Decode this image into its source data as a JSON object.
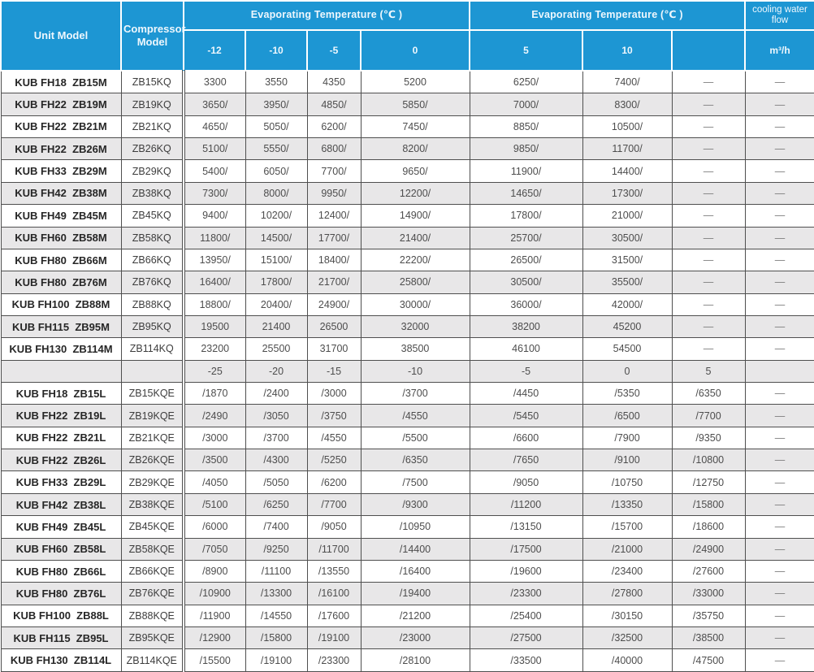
{
  "colors": {
    "header_blue": "#1d96d3",
    "stripe_gray": "#e8e7e8",
    "border_dark": "#4f4f4f",
    "header_text": "#ffffff"
  },
  "table": {
    "header": {
      "unit_model": "Unit Model",
      "compressor_model": "Compressor Model",
      "evap_temp_label_1": "Evaporating Temperature (℃ )",
      "evap_temp_label_2": "Evaporating Temperature (℃ )",
      "cooling_water_flow": "cooling water flow",
      "flow_unit": "m³/h",
      "upper_temp_cols": [
        "-12",
        "-10",
        "-5",
        "0",
        "5",
        "10",
        ""
      ]
    },
    "upper_rows": [
      {
        "unit": "KUB FH18  ZB15M",
        "compressor": "ZB15KQ",
        "values": [
          "3300",
          "3550",
          "4350",
          "5200",
          "6250/",
          "7400/",
          "—",
          "—"
        ]
      },
      {
        "unit": "KUB FH22  ZB19M",
        "compressor": "ZB19KQ",
        "values": [
          "3650/",
          "3950/",
          "4850/",
          "5850/",
          "7000/",
          "8300/",
          "—",
          "—"
        ]
      },
      {
        "unit": "KUB FH22  ZB21M",
        "compressor": "ZB21KQ",
        "values": [
          "4650/",
          "5050/",
          "6200/",
          "7450/",
          "8850/",
          "10500/",
          "—",
          "—"
        ]
      },
      {
        "unit": "KUB FH22  ZB26M",
        "compressor": "ZB26KQ",
        "values": [
          "5100/",
          "5550/",
          "6800/",
          "8200/",
          "9850/",
          "11700/",
          "—",
          "—"
        ]
      },
      {
        "unit": "KUB FH33  ZB29M",
        "compressor": "ZB29KQ",
        "values": [
          "5400/",
          "6050/",
          "7700/",
          "9650/",
          "11900/",
          "14400/",
          "—",
          "—"
        ]
      },
      {
        "unit": "KUB FH42  ZB38M",
        "compressor": "ZB38KQ",
        "values": [
          "7300/",
          "8000/",
          "9950/",
          "12200/",
          "14650/",
          "17300/",
          "—",
          "—"
        ]
      },
      {
        "unit": "KUB FH49  ZB45M",
        "compressor": "ZB45KQ",
        "values": [
          "9400/",
          "10200/",
          "12400/",
          "14900/",
          "17800/",
          "21000/",
          "—",
          "—"
        ]
      },
      {
        "unit": "KUB FH60  ZB58M",
        "compressor": "ZB58KQ",
        "values": [
          "11800/",
          "14500/",
          "17700/",
          "21400/",
          "25700/",
          "30500/",
          "—",
          "—"
        ]
      },
      {
        "unit": "KUB FH80  ZB66M",
        "compressor": "ZB66KQ",
        "values": [
          "13950/",
          "15100/",
          "18400/",
          "22200/",
          "26500/",
          "31500/",
          "—",
          "—"
        ]
      },
      {
        "unit": "KUB FH80  ZB76M",
        "compressor": "ZB76KQ",
        "values": [
          "16400/",
          "17800/",
          "21700/",
          "25800/",
          "30500/",
          "35500/",
          "—",
          "—"
        ]
      },
      {
        "unit": "KUB FH100  ZB88M",
        "compressor": "ZB88KQ",
        "values": [
          "18800/",
          "20400/",
          "24900/",
          "30000/",
          "36000/",
          "42000/",
          "—",
          "—"
        ]
      },
      {
        "unit": "KUB FH115  ZB95M",
        "compressor": "ZB95KQ",
        "values": [
          "19500",
          "21400",
          "26500",
          "32000",
          "38200",
          "45200",
          "—",
          "—"
        ]
      },
      {
        "unit": "KUB FH130  ZB114M",
        "compressor": "ZB114KQ",
        "values": [
          "23200",
          "25500",
          "31700",
          "38500",
          "46100",
          "54500",
          "—",
          "—"
        ]
      }
    ],
    "separator_row": [
      "",
      "",
      "-25",
      "-20",
      "-15",
      "-10",
      "-5",
      "0",
      "5",
      ""
    ],
    "lower_rows": [
      {
        "unit": "KUB FH18  ZB15L",
        "compressor": "ZB15KQE",
        "values": [
          "/1870",
          "/2400",
          "/3000",
          "/3700",
          "/4450",
          "/5350",
          "/6350",
          "—"
        ]
      },
      {
        "unit": "KUB FH22  ZB19L",
        "compressor": "ZB19KQE",
        "values": [
          "/2490",
          "/3050",
          "/3750",
          "/4550",
          "/5450",
          "/6500",
          "/7700",
          "—"
        ]
      },
      {
        "unit": "KUB FH22  ZB21L",
        "compressor": "ZB21KQE",
        "values": [
          "/3000",
          "/3700",
          "/4550",
          "/5500",
          "/6600",
          "/7900",
          "/9350",
          "—"
        ]
      },
      {
        "unit": "KUB FH22  ZB26L",
        "compressor": "ZB26KQE",
        "values": [
          "/3500",
          "/4300",
          "/5250",
          "/6350",
          "/7650",
          "/9100",
          "/10800",
          "—"
        ]
      },
      {
        "unit": "KUB FH33  ZB29L",
        "compressor": "ZB29KQE",
        "values": [
          "/4050",
          "/5050",
          "/6200",
          "/7500",
          "/9050",
          "/10750",
          "/12750",
          "—"
        ]
      },
      {
        "unit": "KUB FH42  ZB38L",
        "compressor": "ZB38KQE",
        "values": [
          "/5100",
          "/6250",
          "/7700",
          "/9300",
          "/11200",
          "/13350",
          "/15800",
          "—"
        ]
      },
      {
        "unit": "KUB FH49  ZB45L",
        "compressor": "ZB45KQE",
        "values": [
          "/6000",
          "/7400",
          "/9050",
          "/10950",
          "/13150",
          "/15700",
          "/18600",
          "—"
        ]
      },
      {
        "unit": "KUB FH60  ZB58L",
        "compressor": "ZB58KQE",
        "values": [
          "/7050",
          "/9250",
          "/11700",
          "/14400",
          "/17500",
          "/21000",
          "/24900",
          "—"
        ]
      },
      {
        "unit": "KUB FH80  ZB66L",
        "compressor": "ZB66KQE",
        "values": [
          "/8900",
          "/11100",
          "/13550",
          "/16400",
          "/19600",
          "/23400",
          "/27600",
          "—"
        ]
      },
      {
        "unit": "KUB FH80  ZB76L",
        "compressor": "ZB76KQE",
        "values": [
          "/10900",
          "/13300",
          "/16100",
          "/19400",
          "/23300",
          "/27800",
          "/33000",
          "—"
        ]
      },
      {
        "unit": "KUB FH100  ZB88L",
        "compressor": "ZB88KQE",
        "values": [
          "/11900",
          "/14550",
          "/17600",
          "/21200",
          "/25400",
          "/30150",
          "/35750",
          "—"
        ]
      },
      {
        "unit": "KUB FH115  ZB95L",
        "compressor": "ZB95KQE",
        "values": [
          "/12900",
          "/15800",
          "/19100",
          "/23000",
          "/27500",
          "/32500",
          "/38500",
          "—"
        ]
      },
      {
        "unit": "KUB FH130  ZB114L",
        "compressor": "ZB114KQE",
        "values": [
          "/15500",
          "/19100",
          "/23300",
          "/28100",
          "/33500",
          "/40000",
          "/47500",
          "—"
        ]
      }
    ]
  }
}
